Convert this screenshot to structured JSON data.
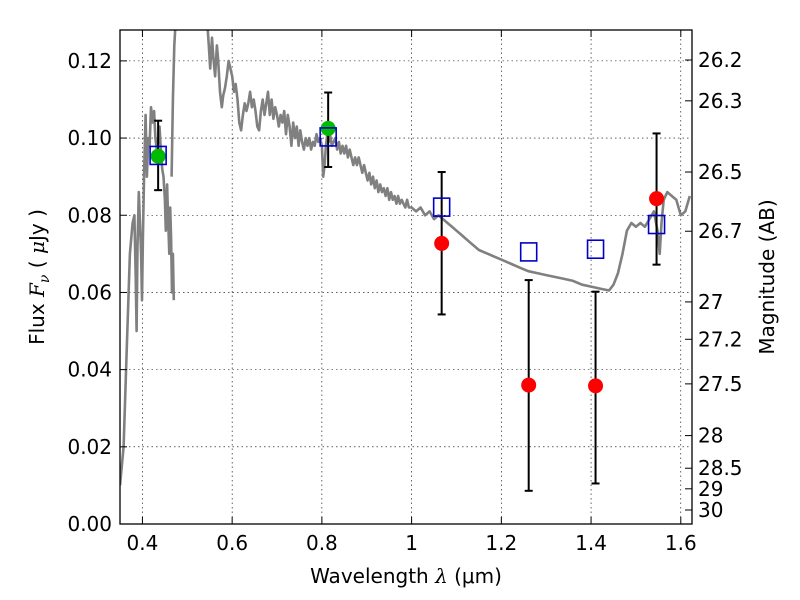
{
  "chart_data": {
    "type": "scatter",
    "xlabel": "Wavelength",
    "xlabel_math": "λ",
    "xlabel_unit": "(μm)",
    "ylabel": "Flux",
    "ylabel_math": "F",
    "ylabel_math_sub": "ν",
    "ylabel_paren_open": "(",
    "ylabel_unit_mu": "μ",
    "ylabel_unit": "Jy",
    "ylabel_paren_close": ")",
    "y2label": "Magnitude (AB)",
    "xlim": [
      0.35,
      1.625
    ],
    "ylim": [
      0.0,
      0.128
    ],
    "grid": true,
    "x_ticks": [
      {
        "value": 0.4,
        "label": "0.4"
      },
      {
        "value": 0.6,
        "label": "0.6"
      },
      {
        "value": 0.8,
        "label": "0.8"
      },
      {
        "value": 1.0,
        "label": "1"
      },
      {
        "value": 1.2,
        "label": "1.2"
      },
      {
        "value": 1.4,
        "label": "1.4"
      },
      {
        "value": 1.6,
        "label": "1.6"
      }
    ],
    "y_ticks": [
      {
        "value": 0.0,
        "label": "0.00"
      },
      {
        "value": 0.02,
        "label": "0.02"
      },
      {
        "value": 0.04,
        "label": "0.04"
      },
      {
        "value": 0.06,
        "label": "0.06"
      },
      {
        "value": 0.08,
        "label": "0.08"
      },
      {
        "value": 0.1,
        "label": "0.10"
      },
      {
        "value": 0.12,
        "label": "0.12"
      }
    ],
    "y2_ticks": [
      {
        "value": 26.2,
        "label": "26.2"
      },
      {
        "value": 26.3,
        "label": "26.3"
      },
      {
        "value": 26.5,
        "label": "26.5"
      },
      {
        "value": 26.7,
        "label": "26.7"
      },
      {
        "value": 27.0,
        "label": "27"
      },
      {
        "value": 27.2,
        "label": "27.2"
      },
      {
        "value": 27.5,
        "label": "27.5"
      },
      {
        "value": 28.0,
        "label": "28"
      },
      {
        "value": 28.5,
        "label": "28.5"
      },
      {
        "value": 29.0,
        "label": "29"
      },
      {
        "value": 30.0,
        "label": "30"
      }
    ],
    "sed_model": {
      "color": "#808080",
      "segments": [
        [
          [
            0.35,
            0.01
          ],
          [
            0.358,
            0.02
          ],
          [
            0.365,
            0.045
          ],
          [
            0.372,
            0.07
          ],
          [
            0.378,
            0.078
          ],
          [
            0.382,
            0.08
          ],
          [
            0.385,
            0.064
          ],
          [
            0.387,
            0.05
          ],
          [
            0.389,
            0.072
          ],
          [
            0.392,
            0.086
          ],
          [
            0.394,
            0.08
          ],
          [
            0.397,
            0.07
          ],
          [
            0.399,
            0.058
          ],
          [
            0.401,
            0.074
          ],
          [
            0.404,
            0.092
          ],
          [
            0.407,
            0.106
          ],
          [
            0.41,
            0.09
          ],
          [
            0.413,
            0.1
          ],
          [
            0.416,
            0.098
          ],
          [
            0.419,
            0.108
          ],
          [
            0.423,
            0.104
          ],
          [
            0.426,
            0.107
          ],
          [
            0.429,
            0.1
          ],
          [
            0.432,
            0.097
          ],
          [
            0.435,
            0.099
          ],
          [
            0.438,
            0.103
          ],
          [
            0.441,
            0.097
          ],
          [
            0.444,
            0.092
          ],
          [
            0.447,
            0.09
          ],
          [
            0.45,
            0.084
          ],
          [
            0.452,
            0.076
          ],
          [
            0.455,
            0.088
          ],
          [
            0.457,
            0.08
          ],
          [
            0.46,
            0.07
          ],
          [
            0.462,
            0.082
          ],
          [
            0.464,
            0.074
          ],
          [
            0.466,
            0.06
          ],
          [
            0.468,
            0.07
          ],
          [
            0.47,
            0.058
          ]
        ],
        [
          [
            0.465,
            0.09
          ],
          [
            0.468,
            0.11
          ],
          [
            0.471,
            0.124
          ],
          [
            0.474,
            0.13
          ]
        ],
        [
          [
            0.545,
            0.129
          ],
          [
            0.548,
            0.124
          ],
          [
            0.551,
            0.118
          ],
          [
            0.555,
            0.126
          ],
          [
            0.558,
            0.121
          ],
          [
            0.562,
            0.116
          ],
          [
            0.566,
            0.124
          ],
          [
            0.569,
            0.12
          ],
          [
            0.573,
            0.112
          ],
          [
            0.577,
            0.108
          ],
          [
            0.58,
            0.111
          ],
          [
            0.584,
            0.113
          ],
          [
            0.588,
            0.116
          ],
          [
            0.592,
            0.12
          ],
          [
            0.596,
            0.118
          ],
          [
            0.6,
            0.116
          ],
          [
            0.604,
            0.112
          ],
          [
            0.608,
            0.114
          ],
          [
            0.612,
            0.11
          ],
          [
            0.616,
            0.104
          ],
          [
            0.62,
            0.102
          ],
          [
            0.624,
            0.106
          ],
          [
            0.628,
            0.109
          ],
          [
            0.632,
            0.107
          ],
          [
            0.636,
            0.109
          ],
          [
            0.64,
            0.112
          ],
          [
            0.644,
            0.108
          ],
          [
            0.648,
            0.11
          ],
          [
            0.652,
            0.107
          ],
          [
            0.656,
            0.103
          ],
          [
            0.66,
            0.102
          ],
          [
            0.664,
            0.107
          ],
          [
            0.668,
            0.11
          ],
          [
            0.672,
            0.106
          ],
          [
            0.676,
            0.109
          ],
          [
            0.68,
            0.112
          ],
          [
            0.684,
            0.106
          ],
          [
            0.688,
            0.11
          ],
          [
            0.692,
            0.105
          ],
          [
            0.696,
            0.108
          ],
          [
            0.7,
            0.106
          ],
          [
            0.704,
            0.103
          ],
          [
            0.708,
            0.106
          ],
          [
            0.712,
            0.104
          ],
          [
            0.716,
            0.107
          ],
          [
            0.72,
            0.101
          ],
          [
            0.724,
            0.106
          ],
          [
            0.728,
            0.103
          ],
          [
            0.732,
            0.098
          ],
          [
            0.736,
            0.104
          ],
          [
            0.74,
            0.1
          ],
          [
            0.744,
            0.103
          ],
          [
            0.748,
            0.098
          ],
          [
            0.752,
            0.102
          ],
          [
            0.756,
            0.099
          ],
          [
            0.76,
            0.097
          ],
          [
            0.764,
            0.1
          ],
          [
            0.768,
            0.098
          ],
          [
            0.772,
            0.1
          ],
          [
            0.776,
            0.097
          ],
          [
            0.78,
            0.099
          ],
          [
            0.784,
            0.098
          ],
          [
            0.788,
            0.101
          ],
          [
            0.792,
            0.099
          ],
          [
            0.796,
            0.1
          ],
          [
            0.8,
            0.098
          ],
          [
            0.803,
            0.09
          ],
          [
            0.806,
            0.093
          ],
          [
            0.809,
            0.098
          ],
          [
            0.812,
            0.101
          ],
          [
            0.815,
            0.099
          ],
          [
            0.818,
            0.101
          ],
          [
            0.822,
            0.098
          ],
          [
            0.826,
            0.099
          ],
          [
            0.83,
            0.1
          ],
          [
            0.834,
            0.097
          ],
          [
            0.838,
            0.099
          ],
          [
            0.842,
            0.096
          ],
          [
            0.846,
            0.098
          ],
          [
            0.85,
            0.096
          ],
          [
            0.854,
            0.098
          ],
          [
            0.858,
            0.095
          ],
          [
            0.862,
            0.097
          ],
          [
            0.866,
            0.095
          ],
          [
            0.87,
            0.093
          ],
          [
            0.874,
            0.095
          ],
          [
            0.878,
            0.093
          ],
          [
            0.882,
            0.095
          ],
          [
            0.886,
            0.093
          ],
          [
            0.89,
            0.091
          ],
          [
            0.894,
            0.093
          ],
          [
            0.898,
            0.091
          ],
          [
            0.902,
            0.089
          ],
          [
            0.906,
            0.091
          ],
          [
            0.91,
            0.088
          ],
          [
            0.914,
            0.09
          ],
          [
            0.918,
            0.087
          ],
          [
            0.922,
            0.089
          ],
          [
            0.926,
            0.086
          ],
          [
            0.93,
            0.088
          ],
          [
            0.934,
            0.086
          ],
          [
            0.938,
            0.087
          ],
          [
            0.942,
            0.085
          ],
          [
            0.946,
            0.087
          ],
          [
            0.95,
            0.084
          ],
          [
            0.954,
            0.086
          ],
          [
            0.958,
            0.084
          ],
          [
            0.962,
            0.085
          ],
          [
            0.966,
            0.083
          ],
          [
            0.97,
            0.085
          ],
          [
            0.974,
            0.083
          ],
          [
            0.978,
            0.084
          ],
          [
            0.982,
            0.083
          ],
          [
            0.986,
            0.082
          ],
          [
            0.99,
            0.084
          ],
          [
            0.994,
            0.082
          ],
          [
            1.0,
            0.082
          ],
          [
            1.01,
            0.081
          ],
          [
            1.02,
            0.082
          ],
          [
            1.03,
            0.08
          ],
          [
            1.04,
            0.081
          ],
          [
            1.05,
            0.079
          ],
          [
            1.06,
            0.08
          ],
          [
            1.07,
            0.079
          ],
          [
            1.08,
            0.078
          ],
          [
            1.09,
            0.077
          ],
          [
            1.1,
            0.076
          ],
          [
            1.11,
            0.075
          ],
          [
            1.12,
            0.074
          ],
          [
            1.13,
            0.073
          ],
          [
            1.14,
            0.072
          ],
          [
            1.15,
            0.071
          ],
          [
            1.16,
            0.0705
          ],
          [
            1.17,
            0.07
          ],
          [
            1.18,
            0.0695
          ],
          [
            1.19,
            0.069
          ],
          [
            1.2,
            0.0685
          ],
          [
            1.22,
            0.0675
          ],
          [
            1.24,
            0.0665
          ],
          [
            1.26,
            0.0655
          ],
          [
            1.28,
            0.065
          ],
          [
            1.3,
            0.0645
          ],
          [
            1.32,
            0.064
          ],
          [
            1.34,
            0.0635
          ],
          [
            1.36,
            0.063
          ],
          [
            1.38,
            0.062
          ],
          [
            1.4,
            0.0615
          ],
          [
            1.42,
            0.061
          ],
          [
            1.44,
            0.0605
          ],
          [
            1.45,
            0.062
          ],
          [
            1.46,
            0.065
          ],
          [
            1.47,
            0.07
          ],
          [
            1.48,
            0.076
          ],
          [
            1.49,
            0.078
          ],
          [
            1.5,
            0.077
          ],
          [
            1.51,
            0.078
          ],
          [
            1.52,
            0.077
          ],
          [
            1.53,
            0.079
          ],
          [
            1.54,
            0.081
          ],
          [
            1.548,
            0.076
          ],
          [
            1.553,
            0.07
          ],
          [
            1.557,
            0.078
          ],
          [
            1.562,
            0.084
          ],
          [
            1.57,
            0.086
          ],
          [
            1.58,
            0.085
          ],
          [
            1.59,
            0.084
          ],
          [
            1.6,
            0.08
          ],
          [
            1.61,
            0.081
          ],
          [
            1.62,
            0.085
          ]
        ]
      ]
    },
    "series": [
      {
        "marker": "circle",
        "color": "#00bb00",
        "points": [
          {
            "x": 0.435,
            "y": 0.0953,
            "err_low": 0.0865,
            "err_high": 0.1045
          },
          {
            "x": 0.814,
            "y": 0.1025,
            "err_low": 0.0925,
            "err_high": 0.1118
          }
        ]
      },
      {
        "marker": "circle",
        "color": "#ff0000",
        "points": [
          {
            "x": 1.067,
            "y": 0.0727,
            "err_low": 0.0543,
            "err_high": 0.0912
          },
          {
            "x": 1.261,
            "y": 0.036,
            "err_low": 0.0086,
            "err_high": 0.0632
          },
          {
            "x": 1.41,
            "y": 0.0358,
            "err_low": 0.0105,
            "err_high": 0.0602
          },
          {
            "x": 1.546,
            "y": 0.0843,
            "err_low": 0.0672,
            "err_high": 0.1012
          }
        ]
      },
      {
        "marker": "square-open",
        "color": "#0000cc",
        "points": [
          {
            "x": 0.435,
            "y": 0.0955
          },
          {
            "x": 0.814,
            "y": 0.1003
          },
          {
            "x": 1.067,
            "y": 0.0821
          },
          {
            "x": 1.261,
            "y": 0.0705
          },
          {
            "x": 1.41,
            "y": 0.0712
          },
          {
            "x": 1.546,
            "y": 0.0776
          }
        ]
      }
    ]
  }
}
